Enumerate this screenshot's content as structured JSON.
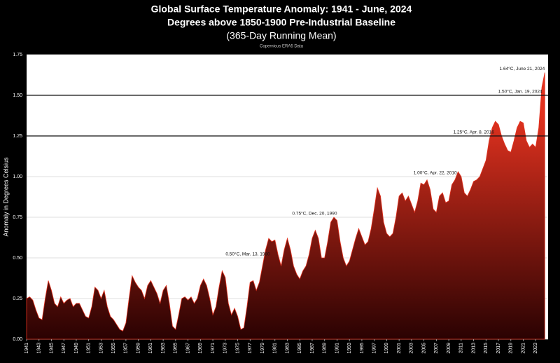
{
  "chart_data": {
    "type": "area",
    "title": "Global Surface Temperature Anomaly: 1941 - June, 2024",
    "subtitle": "Degrees above 1850-1900 Pre-Industrial Baseline",
    "subtitle2": "(365-Day Running Mean)",
    "source": "Copernicus ERA5 Data",
    "y_label": "Anomaly in Degrees Celsius",
    "color": "#e3321f",
    "color_bottom": "#2a0202",
    "grid": true,
    "xlim": [
      1941,
      2025
    ],
    "xticks": [
      1941,
      1943,
      1945,
      1947,
      1949,
      1951,
      1953,
      1955,
      1957,
      1959,
      1961,
      1963,
      1965,
      1967,
      1969,
      1971,
      1973,
      1975,
      1977,
      1979,
      1981,
      1983,
      1985,
      1987,
      1989,
      1991,
      1993,
      1995,
      1997,
      1999,
      2001,
      2003,
      2005,
      2007,
      2009,
      2011,
      2013,
      2015,
      2017,
      2019,
      2021,
      2023
    ],
    "ylim": [
      0,
      1.75
    ],
    "yticks": [
      {
        "value": 0,
        "label": "0.00"
      },
      0.25,
      {
        "value": 0.5,
        "label": "0.50"
      },
      0.75,
      {
        "value": 1,
        "label": "1.00"
      },
      1.25,
      {
        "value": 1.5,
        "label": "1.50"
      },
      1.75
    ],
    "reference_lines": [
      1.25,
      1.5
    ],
    "x": [
      1941,
      1941.5,
      1942,
      1942.5,
      1943,
      1943.5,
      1944,
      1944.5,
      1945,
      1945.5,
      1946,
      1946.5,
      1947,
      1947.5,
      1948,
      1948.5,
      1949,
      1949.5,
      1950,
      1950.5,
      1951,
      1951.5,
      1952,
      1952.5,
      1953,
      1953.5,
      1954,
      1954.5,
      1955,
      1955.5,
      1956,
      1956.5,
      1957,
      1957.5,
      1958,
      1958.5,
      1959,
      1959.5,
      1960,
      1960.5,
      1961,
      1961.5,
      1962,
      1962.5,
      1963,
      1963.5,
      1964,
      1964.5,
      1965,
      1965.5,
      1966,
      1966.5,
      1967,
      1967.5,
      1968,
      1968.5,
      1969,
      1969.5,
      1970,
      1970.5,
      1971,
      1971.5,
      1972,
      1972.5,
      1973,
      1973.5,
      1974,
      1974.5,
      1975,
      1975.5,
      1976,
      1976.5,
      1977,
      1977.5,
      1978,
      1978.5,
      1979,
      1979.5,
      1980,
      1980.5,
      1981,
      1981.5,
      1982,
      1982.5,
      1983,
      1983.5,
      1984,
      1984.5,
      1985,
      1985.5,
      1986,
      1986.5,
      1987,
      1987.5,
      1988,
      1988.5,
      1989,
      1989.5,
      1990,
      1990.5,
      1991,
      1991.5,
      1992,
      1992.5,
      1993,
      1993.5,
      1994,
      1994.5,
      1995,
      1995.5,
      1996,
      1996.5,
      1997,
      1997.5,
      1998,
      1998.5,
      1999,
      1999.5,
      2000,
      2000.5,
      2001,
      2001.5,
      2002,
      2002.5,
      2003,
      2003.5,
      2004,
      2004.5,
      2005,
      2005.5,
      2006,
      2006.5,
      2007,
      2007.5,
      2008,
      2008.5,
      2009,
      2009.5,
      2010,
      2010.5,
      2011,
      2011.5,
      2012,
      2012.5,
      2013,
      2013.5,
      2014,
      2014.5,
      2015,
      2015.5,
      2016,
      2016.5,
      2017,
      2017.5,
      2018,
      2018.5,
      2019,
      2019.5,
      2020,
      2020.5,
      2021,
      2021.5,
      2022,
      2022.5,
      2023,
      2023.5,
      2024,
      2024.47
    ],
    "values": [
      0.25,
      0.26,
      0.24,
      0.18,
      0.13,
      0.12,
      0.25,
      0.36,
      0.3,
      0.22,
      0.2,
      0.26,
      0.22,
      0.24,
      0.25,
      0.2,
      0.22,
      0.22,
      0.18,
      0.14,
      0.13,
      0.2,
      0.32,
      0.3,
      0.25,
      0.3,
      0.2,
      0.14,
      0.12,
      0.09,
      0.06,
      0.05,
      0.1,
      0.25,
      0.39,
      0.35,
      0.32,
      0.3,
      0.25,
      0.33,
      0.36,
      0.32,
      0.28,
      0.22,
      0.3,
      0.33,
      0.22,
      0.08,
      0.06,
      0.15,
      0.25,
      0.26,
      0.24,
      0.26,
      0.22,
      0.25,
      0.33,
      0.37,
      0.33,
      0.25,
      0.15,
      0.2,
      0.32,
      0.42,
      0.38,
      0.22,
      0.15,
      0.19,
      0.14,
      0.06,
      0.07,
      0.2,
      0.35,
      0.36,
      0.3,
      0.35,
      0.45,
      0.55,
      0.62,
      0.6,
      0.61,
      0.52,
      0.45,
      0.55,
      0.62,
      0.55,
      0.45,
      0.4,
      0.37,
      0.42,
      0.45,
      0.52,
      0.62,
      0.67,
      0.62,
      0.5,
      0.5,
      0.6,
      0.72,
      0.75,
      0.73,
      0.6,
      0.5,
      0.45,
      0.48,
      0.55,
      0.62,
      0.68,
      0.63,
      0.58,
      0.6,
      0.68,
      0.8,
      0.93,
      0.88,
      0.72,
      0.65,
      0.63,
      0.65,
      0.75,
      0.88,
      0.9,
      0.85,
      0.88,
      0.83,
      0.78,
      0.85,
      0.96,
      0.95,
      0.98,
      0.92,
      0.8,
      0.78,
      0.88,
      0.9,
      0.84,
      0.85,
      0.95,
      0.98,
      1.03,
      1.0,
      0.9,
      0.88,
      0.92,
      0.97,
      0.98,
      1.0,
      1.05,
      1.1,
      1.22,
      1.3,
      1.34,
      1.32,
      1.25,
      1.2,
      1.16,
      1.15,
      1.22,
      1.3,
      1.34,
      1.33,
      1.22,
      1.18,
      1.2,
      1.18,
      1.3,
      1.55,
      1.64
    ],
    "annotations": [
      {
        "text": "0.50°C, Mar. 13, 1980",
        "x": 1980.2,
        "y": 0.5
      },
      {
        "text": "0.75°C, Dec. 20, 1990",
        "x": 1991.0,
        "y": 0.75
      },
      {
        "text": "1.00°C, Apr. 22, 2010",
        "x": 2010.3,
        "y": 1
      },
      {
        "text": "1.25°C, Apr. 8, 2016",
        "x": 2016.3,
        "y": 1.25
      },
      {
        "text": "1.50°C, Jan. 19, 2024",
        "x": 2024.05,
        "y": 1.5
      },
      {
        "text": "1.64°C, June 21, 2024",
        "x": 2024.47,
        "y": 1.64
      }
    ]
  }
}
